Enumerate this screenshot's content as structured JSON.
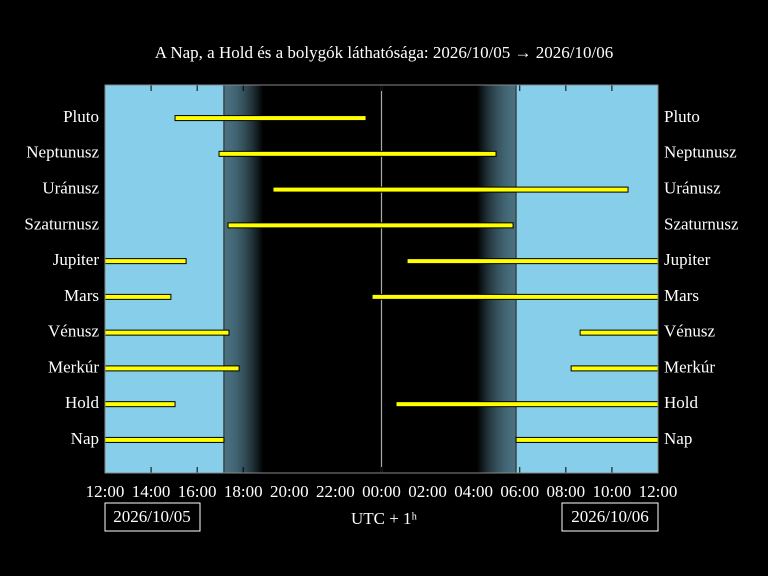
{
  "chart_data": {
    "type": "range-bar",
    "title": "A Nap, a Hold és a bolygók láthatósága: 2026/10/05 → 2026/10/06",
    "xlabel": "UTC + 1ʰ",
    "start_date": "2026/10/05",
    "end_date": "2026/10/06",
    "categories": [
      "Pluto",
      "Neptunusz",
      "Uránusz",
      "Szaturnusz",
      "Jupiter",
      "Mars",
      "Vénusz",
      "Merkúr",
      "Hold",
      "Nap"
    ],
    "ranges": [
      [
        [
          3.04,
          11.33
        ]
      ],
      [
        [
          4.95,
          16.97
        ]
      ],
      [
        [
          7.29,
          22.7
        ]
      ],
      [
        [
          5.34,
          17.71
        ]
      ],
      [
        [
          0,
          3.52
        ],
        [
          13.11,
          24
        ]
      ],
      [
        [
          0,
          2.86
        ],
        [
          11.59,
          24
        ]
      ],
      [
        [
          0,
          5.38
        ],
        [
          20.62,
          24
        ]
      ],
      [
        [
          0,
          5.82
        ],
        [
          20.23,
          24
        ]
      ],
      [
        [
          0,
          3.04
        ],
        [
          12.63,
          24
        ]
      ],
      [
        [
          0,
          5.16
        ],
        [
          17.84,
          24
        ]
      ]
    ],
    "color": "#ffff00",
    "xlim": [
      0,
      24
    ],
    "xticks": [
      {
        "value": 0,
        "label": "12:00"
      },
      {
        "value": 2,
        "label": "14:00"
      },
      {
        "value": 4,
        "label": "16:00"
      },
      {
        "value": 6,
        "label": "18:00"
      },
      {
        "value": 8,
        "label": "20:00"
      },
      {
        "value": 10,
        "label": "22:00"
      },
      {
        "value": 12,
        "label": "00:00"
      },
      {
        "value": 14,
        "label": "02:00"
      },
      {
        "value": 16,
        "label": "04:00"
      },
      {
        "value": 18,
        "label": "06:00"
      },
      {
        "value": 20,
        "label": "08:00"
      },
      {
        "value": 22,
        "label": "10:00"
      },
      {
        "value": 24,
        "label": "12:00"
      }
    ],
    "sky": {
      "sunset": 5.16,
      "night_start": 6.86,
      "midnight": 12,
      "night_end": 16.15,
      "sunrise": 17.84,
      "day_color": "#87ceeb",
      "night_color": "#000000"
    }
  }
}
